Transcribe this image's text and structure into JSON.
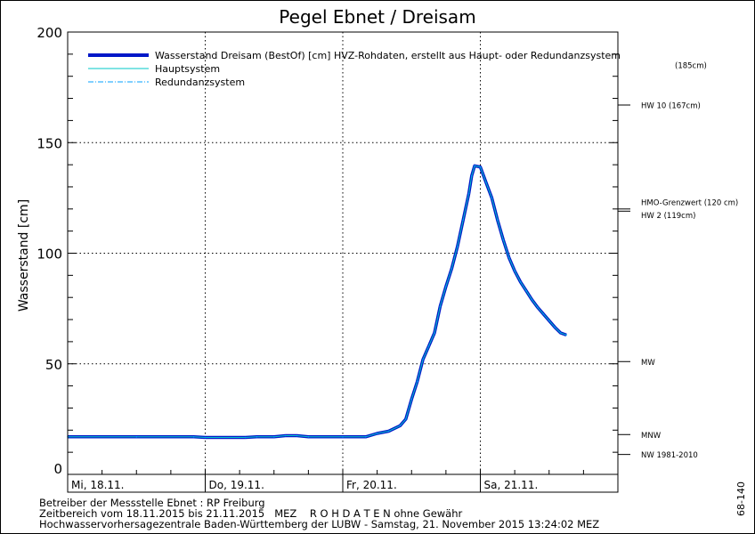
{
  "chart_data": {
    "type": "line",
    "title": "Pegel Ebnet / Dreisam",
    "ylabel": "Wasserstand [cm]",
    "xlabel": "",
    "ylim": [
      0,
      200
    ],
    "yticks": [
      0,
      50,
      100,
      150,
      200
    ],
    "xlim": [
      "2015-11-18 00:00",
      "2015-11-21 24:00"
    ],
    "xticks": [
      {
        "time": "2015-11-18 00:00",
        "label": "Mi, 18.11."
      },
      {
        "time": "2015-11-19 00:00",
        "label": "Do, 19.11."
      },
      {
        "time": "2015-11-20 00:00",
        "label": "Fr, 20.11."
      },
      {
        "time": "2015-11-21 00:00",
        "label": "Sa, 21.11."
      }
    ],
    "grid": true,
    "legend_position": "top-left",
    "series": [
      {
        "name": "Wasserstand Dreisam  (BestOf) [cm] HVZ-Rohdaten, erstellt aus Haupt- oder Redundanzsystem",
        "style": "thick-solid",
        "color": "#0018c8",
        "points": [
          [
            "2015-11-18 00:00",
            17
          ],
          [
            "2015-11-18 12:00",
            17
          ],
          [
            "2015-11-18 22:00",
            17
          ],
          [
            "2015-11-19 00:00",
            16.7
          ],
          [
            "2015-11-19 07:00",
            16.7
          ],
          [
            "2015-11-19 09:00",
            17
          ],
          [
            "2015-11-19 12:00",
            17
          ],
          [
            "2015-11-19 14:00",
            17.5
          ],
          [
            "2015-11-19 16:00",
            17.5
          ],
          [
            "2015-11-19 18:00",
            17
          ],
          [
            "2015-11-20 00:00",
            17
          ],
          [
            "2015-11-20 04:00",
            17
          ],
          [
            "2015-11-20 06:00",
            18.5
          ],
          [
            "2015-11-20 08:00",
            19.5
          ],
          [
            "2015-11-20 10:00",
            22
          ],
          [
            "2015-11-20 11:00",
            25
          ],
          [
            "2015-11-20 12:00",
            34
          ],
          [
            "2015-11-20 13:00",
            42
          ],
          [
            "2015-11-20 14:00",
            52
          ],
          [
            "2015-11-20 15:00",
            58
          ],
          [
            "2015-11-20 16:00",
            64
          ],
          [
            "2015-11-20 17:00",
            76
          ],
          [
            "2015-11-20 18:00",
            85
          ],
          [
            "2015-11-20 19:00",
            93
          ],
          [
            "2015-11-20 20:00",
            103
          ],
          [
            "2015-11-20 21:00",
            115
          ],
          [
            "2015-11-20 22:00",
            127
          ],
          [
            "2015-11-20 22:30",
            135
          ],
          [
            "2015-11-20 23:00",
            139.5
          ],
          [
            "2015-11-21 00:00",
            139
          ],
          [
            "2015-11-21 01:00",
            132
          ],
          [
            "2015-11-21 02:00",
            125
          ],
          [
            "2015-11-21 03:00",
            115
          ],
          [
            "2015-11-21 04:00",
            106
          ],
          [
            "2015-11-21 05:00",
            98
          ],
          [
            "2015-11-21 06:00",
            92
          ],
          [
            "2015-11-21 07:00",
            87
          ],
          [
            "2015-11-21 08:00",
            83
          ],
          [
            "2015-11-21 09:00",
            79
          ],
          [
            "2015-11-21 10:00",
            75.5
          ],
          [
            "2015-11-21 11:00",
            72.5
          ],
          [
            "2015-11-21 12:00",
            69.5
          ],
          [
            "2015-11-21 13:00",
            66.5
          ],
          [
            "2015-11-21 14:00",
            64
          ],
          [
            "2015-11-21 15:00",
            63
          ]
        ]
      },
      {
        "name": "Hauptsystem",
        "style": "thin-solid",
        "color": "#00c8c8"
      },
      {
        "name": "Redundanzsystem",
        "style": "dash-dot",
        "color": "#00a0ff"
      }
    ],
    "reference_levels": [
      {
        "label": "HW 10 (167cm)",
        "value": 167
      },
      {
        "label": "HMO-Grenzwert (120 cm)",
        "value": 120
      },
      {
        "label": "HW 2 (119cm)",
        "value": 119
      },
      {
        "label": "MW",
        "value": 51
      },
      {
        "label": "MNW",
        "value": 18
      },
      {
        "label": "NW 1981-2010",
        "value": 9
      }
    ],
    "offscale_label": "(185cm)"
  },
  "footer": {
    "line1": "Betreiber der Messstelle Ebnet : RP Freiburg",
    "line2": "Zeitbereich vom 18.11.2015 bis 21.11.2015   MEZ    R O H D A T E N ohne Gewähr",
    "line3": "Hochwasservorhersagezentrale Baden-Württemberg der LUBW - Samstag, 21. November 2015 13:24:02 MEZ"
  },
  "side_code": "68-140"
}
